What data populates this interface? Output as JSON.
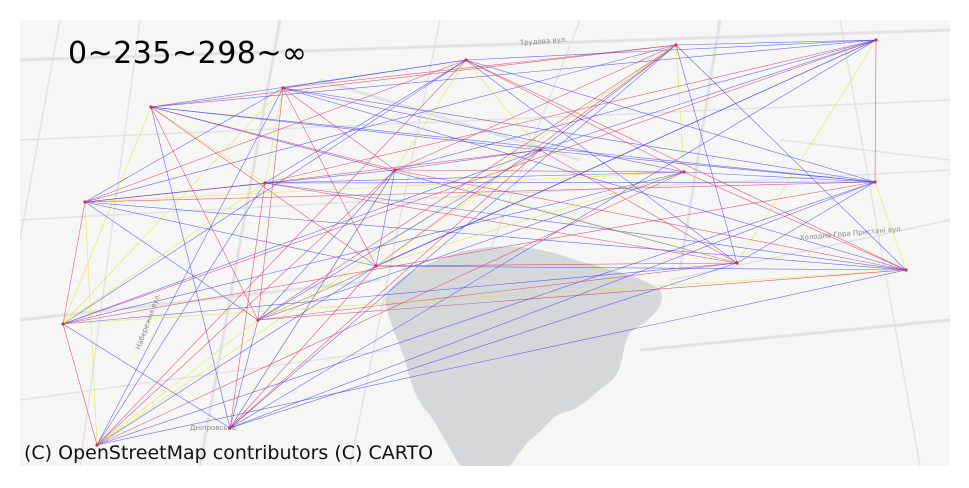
{
  "map": {
    "title": "0~235~298~∞",
    "attribution": "(C) OpenStreetMap contributors (C) CARTO",
    "colors": {
      "background": "#f6f6f4",
      "water": "#d4d8db",
      "road": "#e3e3e3",
      "edge_blue": "#3a3af0",
      "edge_yellow": "#e8e020",
      "edge_red": "#d8285a"
    },
    "street_labels": [
      "Трудова вул.",
      "Холодна Гора Пристані вул.",
      "Дніпровська",
      "Набережна вул."
    ]
  }
}
